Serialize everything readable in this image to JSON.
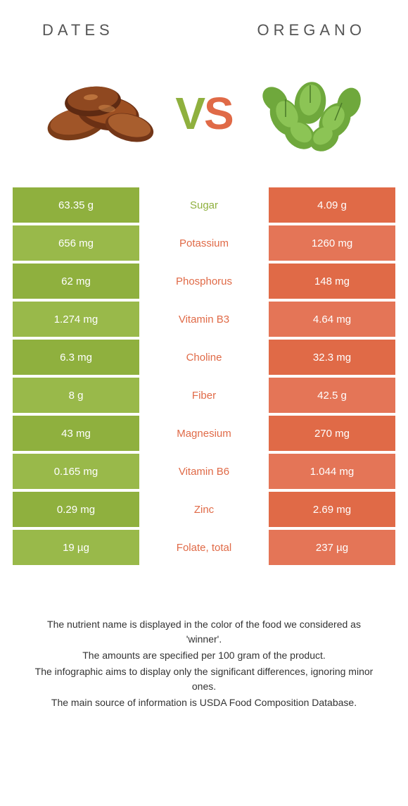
{
  "colors": {
    "left": "#8fb03e",
    "right": "#e06a47",
    "left_alt": "#99b94a",
    "right_alt": "#e47557"
  },
  "header": {
    "left": "Dates",
    "right": "Oregano"
  },
  "vs": {
    "v": "V",
    "s": "S"
  },
  "rows": [
    {
      "label": "Sugar",
      "left": "63.35 g",
      "right": "4.09 g",
      "winner": "left"
    },
    {
      "label": "Potassium",
      "left": "656 mg",
      "right": "1260 mg",
      "winner": "right"
    },
    {
      "label": "Phosphorus",
      "left": "62 mg",
      "right": "148 mg",
      "winner": "right"
    },
    {
      "label": "Vitamin B3",
      "left": "1.274 mg",
      "right": "4.64 mg",
      "winner": "right"
    },
    {
      "label": "Choline",
      "left": "6.3 mg",
      "right": "32.3 mg",
      "winner": "right"
    },
    {
      "label": "Fiber",
      "left": "8 g",
      "right": "42.5 g",
      "winner": "right"
    },
    {
      "label": "Magnesium",
      "left": "43 mg",
      "right": "270 mg",
      "winner": "right"
    },
    {
      "label": "Vitamin B6",
      "left": "0.165 mg",
      "right": "1.044 mg",
      "winner": "right"
    },
    {
      "label": "Zinc",
      "left": "0.29 mg",
      "right": "2.69 mg",
      "winner": "right"
    },
    {
      "label": "Folate, total",
      "left": "19 µg",
      "right": "237 µg",
      "winner": "right"
    }
  ],
  "footer": {
    "l1": "The nutrient name is displayed in the color of the food we considered as 'winner'.",
    "l2": "The amounts are specified per 100 gram of the product.",
    "l3": "The infographic aims to display only the significant differences, ignoring minor ones.",
    "l4": "The main source of information is USDA Food Composition Database."
  }
}
